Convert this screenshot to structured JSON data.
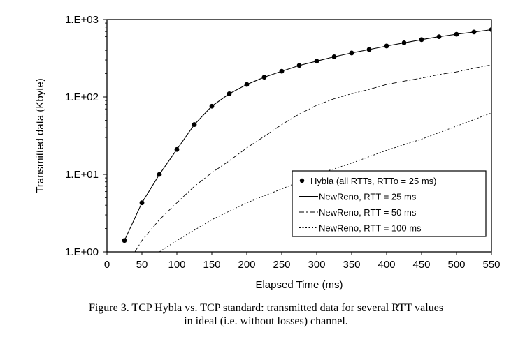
{
  "chart_data": {
    "type": "line",
    "title": "",
    "xlabel": "Elapsed Time (ms)",
    "ylabel": "Transmitted data (Kbyte)",
    "xlim": [
      0,
      550
    ],
    "ylim": [
      1,
      1000
    ],
    "yscale": "log",
    "grid": false,
    "legend_position": "bottom-right",
    "x_ticks": [
      "0",
      "50",
      "100",
      "150",
      "200",
      "250",
      "300",
      "350",
      "400",
      "450",
      "500",
      "550"
    ],
    "y_ticks": [
      "1.E+00",
      "1.E+01",
      "1.E+02",
      "1.E+03"
    ],
    "series": [
      {
        "name": "Hybla (all RTTs, RTTo = 25 ms)",
        "style": "markers",
        "x": [
          25,
          50,
          75,
          100,
          125,
          150,
          175,
          200,
          225,
          250,
          275,
          300,
          325,
          350,
          375,
          400,
          425,
          450,
          475,
          500,
          525,
          550
        ],
        "y": [
          1.4,
          4.3,
          10,
          21,
          44,
          76,
          110,
          145,
          180,
          215,
          255,
          290,
          330,
          370,
          410,
          455,
          500,
          550,
          600,
          645,
          690,
          740
        ]
      },
      {
        "name": "NewReno, RTT = 25 ms",
        "style": "solid",
        "x": [
          25,
          50,
          75,
          100,
          125,
          150,
          175,
          200,
          225,
          250,
          275,
          300,
          325,
          350,
          375,
          400,
          425,
          450,
          475,
          500,
          525,
          550
        ],
        "y": [
          1.4,
          4.3,
          10,
          21,
          44,
          76,
          110,
          145,
          180,
          215,
          255,
          290,
          330,
          370,
          410,
          455,
          500,
          550,
          600,
          645,
          690,
          740
        ]
      },
      {
        "name": "NewReno, RTT = 50 ms",
        "style": "dashdot",
        "x": [
          40,
          50,
          75,
          100,
          125,
          150,
          175,
          200,
          225,
          250,
          275,
          300,
          325,
          350,
          375,
          400,
          425,
          450,
          475,
          500,
          525,
          550
        ],
        "y": [
          1.0,
          1.4,
          2.6,
          4.3,
          7,
          10.5,
          15,
          22,
          31,
          44,
          60,
          78,
          95,
          110,
          125,
          145,
          160,
          175,
          195,
          210,
          235,
          260
        ]
      },
      {
        "name": "NewReno, RTT = 100 ms",
        "style": "dotted",
        "x": [
          75,
          100,
          150,
          200,
          250,
          300,
          350,
          400,
          450,
          500,
          550
        ],
        "y": [
          1.0,
          1.4,
          2.6,
          4.3,
          6.5,
          10,
          14,
          20.5,
          28.5,
          42,
          62
        ]
      }
    ]
  },
  "caption": {
    "line1": "Figure 3.  TCP Hybla vs. TCP standard: transmitted data for several RTT values",
    "line2": "in ideal (i.e. without losses) channel."
  }
}
